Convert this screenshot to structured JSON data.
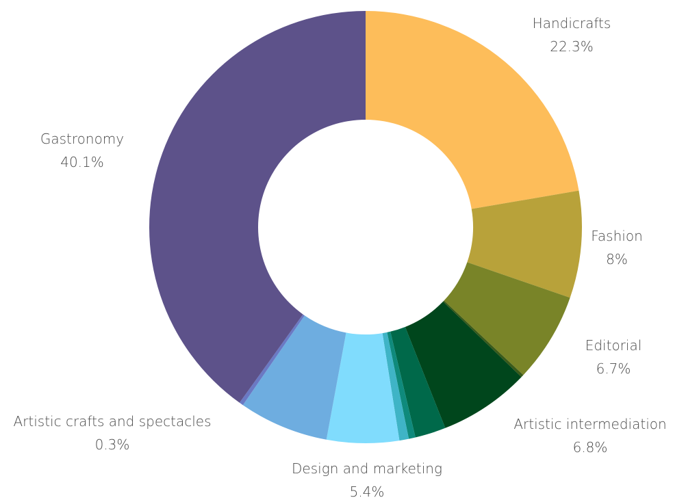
{
  "chart_data": {
    "type": "pie",
    "donut": true,
    "slices": [
      {
        "label": "Handicrafts",
        "value": 22.3,
        "value_label": "22.3%",
        "color": "#fdbd5a",
        "labeled": true
      },
      {
        "label": "Fashion",
        "value": 8.0,
        "value_label": "8%",
        "color": "#b8a23a",
        "labeled": true
      },
      {
        "label": "Editorial",
        "value": 6.7,
        "value_label": "6.7%",
        "color": "#798428",
        "labeled": true
      },
      {
        "label": "",
        "value": 0.2,
        "value_label": "",
        "color": "#3a5a1a",
        "labeled": false
      },
      {
        "label": "Artistic intermediation",
        "value": 6.8,
        "value_label": "6.8%",
        "color": "#00461c",
        "labeled": true
      },
      {
        "label": "",
        "value": 2.3,
        "value_label": "",
        "color": "#00694a",
        "labeled": false
      },
      {
        "label": "",
        "value": 0.5,
        "value_label": "",
        "color": "#0f8a7c",
        "labeled": false
      },
      {
        "label": "",
        "value": 0.7,
        "value_label": "",
        "color": "#3fb4c6",
        "labeled": false
      },
      {
        "label": "Design and marketing",
        "value": 5.4,
        "value_label": "5.4%",
        "color": "#80dcfd",
        "labeled": true
      },
      {
        "label": "",
        "value": 6.7,
        "value_label": "",
        "color": "#6eade0",
        "labeled": false
      },
      {
        "label": "Artistic crafts and spectacles",
        "value": 0.3,
        "value_label": "0.3%",
        "color": "#6a79c4",
        "labeled": true
      },
      {
        "label": "Gastronomy",
        "value": 40.1,
        "value_label": "40.1%",
        "color": "#5d528a",
        "labeled": true
      }
    ],
    "start_angle_deg": 0,
    "direction": "clockwise",
    "label_color": "#4a4a4a"
  }
}
